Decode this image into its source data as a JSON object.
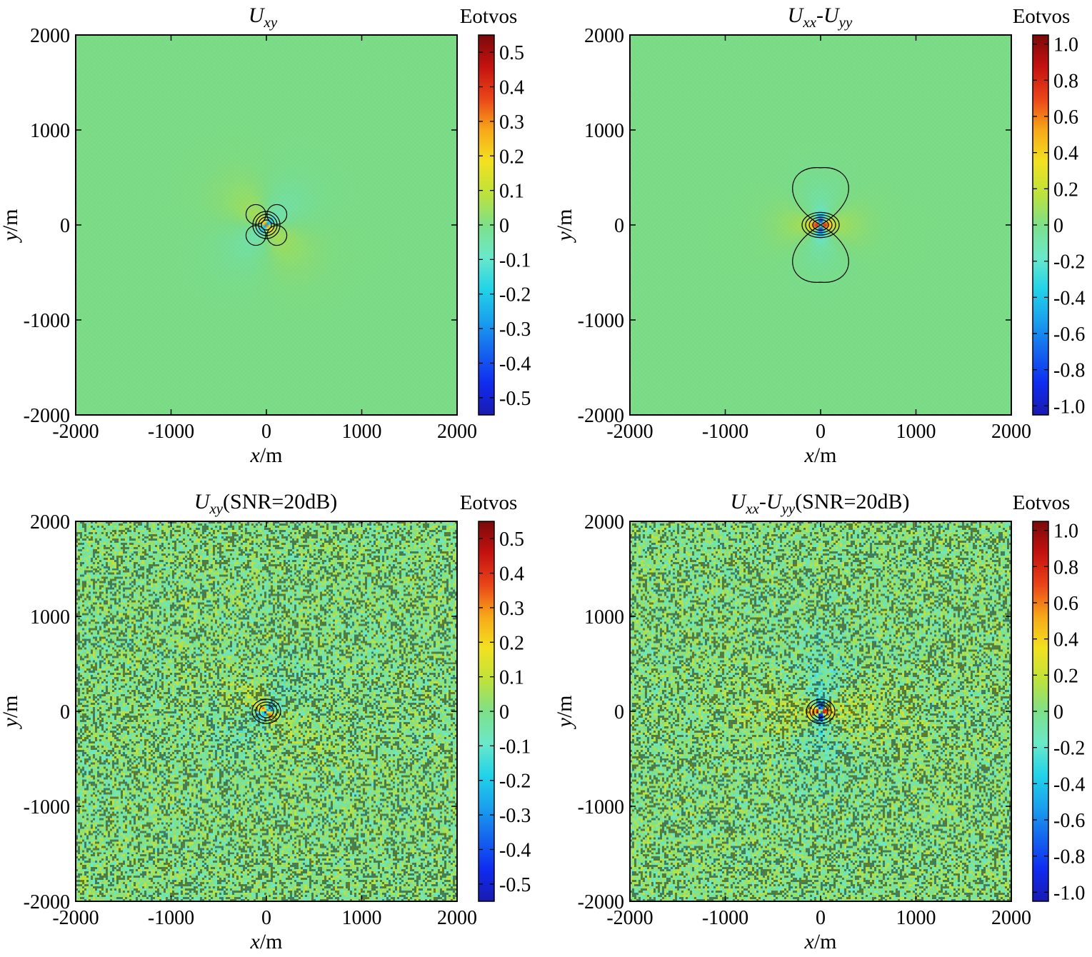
{
  "figure": {
    "background": "#ffffff"
  },
  "palette": [
    "#1a1ab0",
    "#0f2cf0",
    "#1565ee",
    "#1aa2ee",
    "#22d4e8",
    "#6be8c8",
    "#7ee089",
    "#bfe23a",
    "#f2e120",
    "#f7a818",
    "#ea4419",
    "#c41210",
    "#7a0a0a"
  ],
  "chart_data": [
    {
      "id": "uxy",
      "type": "heatmap",
      "title": {
        "base": "U",
        "sub": "xy",
        "tail": ""
      },
      "xlabel": {
        "italic": "x",
        "rest": "/m"
      },
      "ylabel": {
        "italic": "y",
        "rest": "/m"
      },
      "xlim": [
        -2000,
        2000
      ],
      "ylim": [
        -2000,
        2000
      ],
      "xticks": [
        "-2000",
        "-1000",
        "0",
        "1000",
        "2000"
      ],
      "yticks": [
        "2000",
        "1000",
        "0",
        "-1000",
        "-2000"
      ],
      "colorbar": {
        "label": "Eotvos",
        "range": [
          -0.55,
          0.55
        ],
        "ticks": [
          0.5,
          0.4,
          0.3,
          0.2,
          0.1,
          0,
          -0.1,
          -0.2,
          -0.3,
          -0.4,
          -0.5
        ],
        "tick_labels": [
          "0.5",
          "0.4",
          "0.3",
          "0.2",
          "0.1",
          "0",
          "-0.1",
          "-0.2",
          "-0.3",
          "-0.4",
          "-0.5"
        ]
      },
      "field": {
        "pattern": "quadrupole-xy",
        "noise": false,
        "lobe_extent_m": 200
      }
    },
    {
      "id": "uxx_uyy",
      "type": "heatmap",
      "title": {
        "base": "U",
        "sub": "xx",
        "tail": "-U",
        "sub2": "yy",
        "tail2": ""
      },
      "xlabel": {
        "italic": "x",
        "rest": "/m"
      },
      "ylabel": {
        "italic": "y",
        "rest": "/m"
      },
      "xlim": [
        -2000,
        2000
      ],
      "ylim": [
        -2000,
        2000
      ],
      "xticks": [
        "-2000",
        "-1000",
        "0",
        "1000",
        "2000"
      ],
      "yticks": [
        "2000",
        "1000",
        "0",
        "-1000",
        "-2000"
      ],
      "colorbar": {
        "label": "Eotvos",
        "range": [
          -1.05,
          1.05
        ],
        "ticks": [
          1.0,
          0.8,
          0.6,
          0.4,
          0.2,
          0,
          -0.2,
          -0.4,
          -0.6,
          -0.8,
          -1.0
        ],
        "tick_labels": [
          "1.0",
          "0.8",
          "0.6",
          "0.4",
          "0.2",
          "0",
          "-0.2",
          "-0.4",
          "-0.6",
          "-0.8",
          "-1.0"
        ]
      },
      "field": {
        "pattern": "dumbbell-vertical",
        "noise": false,
        "lobe_extent_m": 600
      }
    },
    {
      "id": "uxy_noisy",
      "type": "heatmap",
      "title": {
        "base": "U",
        "sub": "xy",
        "tail": "(SNR=20dB)"
      },
      "xlabel": {
        "italic": "x",
        "rest": "/m"
      },
      "ylabel": {
        "italic": "y",
        "rest": "/m"
      },
      "xlim": [
        -2000,
        2000
      ],
      "ylim": [
        -2000,
        2000
      ],
      "xticks": [
        "-2000",
        "-1000",
        "0",
        "1000",
        "2000"
      ],
      "yticks": [
        "2000",
        "1000",
        "0",
        "-1000",
        "-2000"
      ],
      "colorbar": {
        "label": "Eotvos",
        "range": [
          -0.55,
          0.55
        ],
        "ticks": [
          0.5,
          0.4,
          0.3,
          0.2,
          0.1,
          0,
          -0.1,
          -0.2,
          -0.3,
          -0.4,
          -0.5
        ],
        "tick_labels": [
          "0.5",
          "0.4",
          "0.3",
          "0.2",
          "0.1",
          "0",
          "-0.1",
          "-0.2",
          "-0.3",
          "-0.4",
          "-0.5"
        ]
      },
      "field": {
        "pattern": "quadrupole-xy",
        "noise": true,
        "snr_db": 20,
        "lobe_extent_m": 700
      }
    },
    {
      "id": "uxx_uyy_noisy",
      "type": "heatmap",
      "title": {
        "base": "U",
        "sub": "xx",
        "tail": "-U",
        "sub2": "yy",
        "tail2": "(SNR=20dB)"
      },
      "xlabel": {
        "italic": "x",
        "rest": "/m"
      },
      "ylabel": {
        "italic": "y",
        "rest": "/m"
      },
      "xlim": [
        -2000,
        2000
      ],
      "ylim": [
        -2000,
        2000
      ],
      "xticks": [
        "-2000",
        "-1000",
        "0",
        "1000",
        "2000"
      ],
      "yticks": [
        "2000",
        "1000",
        "0",
        "-1000",
        "-2000"
      ],
      "colorbar": {
        "label": "Eotvos",
        "range": [
          -1.05,
          1.05
        ],
        "ticks": [
          1.0,
          0.8,
          0.6,
          0.4,
          0.2,
          0,
          -0.2,
          -0.4,
          -0.6,
          -0.8,
          -1.0
        ],
        "tick_labels": [
          "1.0",
          "0.8",
          "0.6",
          "0.4",
          "0.2",
          "0",
          "-0.2",
          "-0.4",
          "-0.6",
          "-0.8",
          "-1.0"
        ]
      },
      "field": {
        "pattern": "saddle-x",
        "noise": true,
        "snr_db": 20,
        "lobe_extent_m": 900
      }
    }
  ]
}
